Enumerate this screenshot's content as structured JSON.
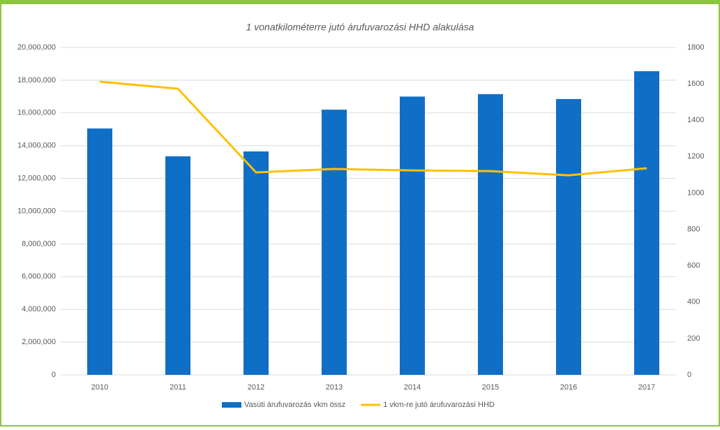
{
  "chart_data": {
    "type": "bar_line",
    "title": "1 vonatkilométerre jutó árufuvarozási HHD alakulása",
    "categories": [
      "2010",
      "2011",
      "2012",
      "2013",
      "2014",
      "2015",
      "2016",
      "2017"
    ],
    "series": [
      {
        "name": "Vasúti árufuvarozás vkm össz",
        "type": "bar",
        "color": "#0f6fc6",
        "values": [
          15050000,
          13350000,
          13650000,
          16200000,
          17000000,
          17150000,
          16850000,
          18550000
        ]
      },
      {
        "name": "1 vkm-re jutó árufuvarozási HHD",
        "type": "line",
        "axis": "y2",
        "color": "#ffc000",
        "values": [
          1612,
          1573,
          1113,
          1132,
          1124,
          1120,
          1097,
          1136
        ]
      }
    ],
    "ylim": [
      0,
      20000000
    ],
    "yticks": [
      0,
      {
        "value": 2000000,
        "label": "2,000,000"
      },
      {
        "value": 4000000,
        "label": "4,000,000"
      },
      {
        "value": 6000000,
        "label": "6,000,000"
      },
      {
        "value": 8000000,
        "label": "8,000,000"
      },
      {
        "value": 10000000,
        "label": "10,000,000"
      },
      {
        "value": 12000000,
        "label": "12,000,000"
      },
      {
        "value": 14000000,
        "label": "14,000,000"
      },
      {
        "value": 16000000,
        "label": "16,000,000"
      },
      {
        "value": 18000000,
        "label": "18,000,000"
      },
      {
        "value": 20000000,
        "label": "20,000,000"
      }
    ],
    "y2lim": [
      0,
      1800
    ],
    "y2ticks": [
      0,
      200,
      400,
      600,
      800,
      1000,
      1200,
      1400,
      1600,
      1800
    ],
    "grid": true,
    "legend": "bottom"
  }
}
